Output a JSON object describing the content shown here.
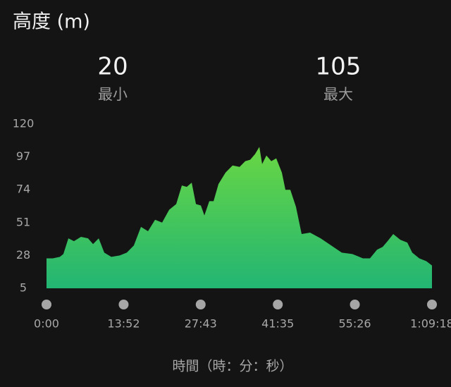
{
  "chart_data": {
    "type": "area",
    "title": "高度 (m)",
    "summary": [
      {
        "value": 20,
        "label": "最小"
      },
      {
        "value": 105,
        "label": "最大"
      }
    ],
    "x_label": "時間（時：分：秒）",
    "x": [
      0,
      68,
      144,
      182,
      236,
      296,
      372,
      448,
      502,
      563,
      623,
      699,
      790,
      866,
      942,
      1019,
      1095,
      1171,
      1247,
      1323,
      1399,
      1460,
      1513,
      1566,
      1612,
      1665,
      1703,
      1756,
      1802,
      1855,
      1931,
      2007,
      2083,
      2144,
      2197,
      2250,
      2296,
      2326,
      2372,
      2425,
      2478,
      2539,
      2577,
      2630,
      2691,
      2752,
      2843,
      2957,
      3071,
      3185,
      3299,
      3413,
      3489,
      3565,
      3626,
      3679,
      3740,
      3816,
      3892,
      3945,
      4021,
      4097,
      4158
    ],
    "values": [
      26,
      26,
      27,
      29,
      40,
      38,
      41,
      40,
      36,
      40,
      30,
      27,
      28,
      30,
      35,
      48,
      45,
      53,
      51,
      60,
      64,
      77,
      76,
      79,
      64,
      63,
      56,
      66,
      66,
      78,
      86,
      91,
      90,
      94,
      95,
      99,
      104,
      92,
      98,
      94,
      96,
      86,
      74,
      74,
      62,
      43,
      44,
      40,
      35,
      30,
      29,
      26,
      26,
      32,
      34,
      38,
      43,
      39,
      37,
      30,
      26,
      24,
      21
    ],
    "colors": [
      "#74dc3c",
      "#22b573"
    ],
    "xlim": [
      0,
      4158
    ],
    "ylim": [
      5,
      120
    ],
    "yticks": [
      5,
      28,
      51,
      74,
      97,
      120
    ],
    "xticks": [
      {
        "value": 0,
        "label": "0:00"
      },
      {
        "value": 832,
        "label": "13:52"
      },
      {
        "value": 1663,
        "label": "27:43"
      },
      {
        "value": 2495,
        "label": "41:35"
      },
      {
        "value": 3326,
        "label": "55:26"
      },
      {
        "value": 4158,
        "label": "1:09:18"
      }
    ]
  }
}
